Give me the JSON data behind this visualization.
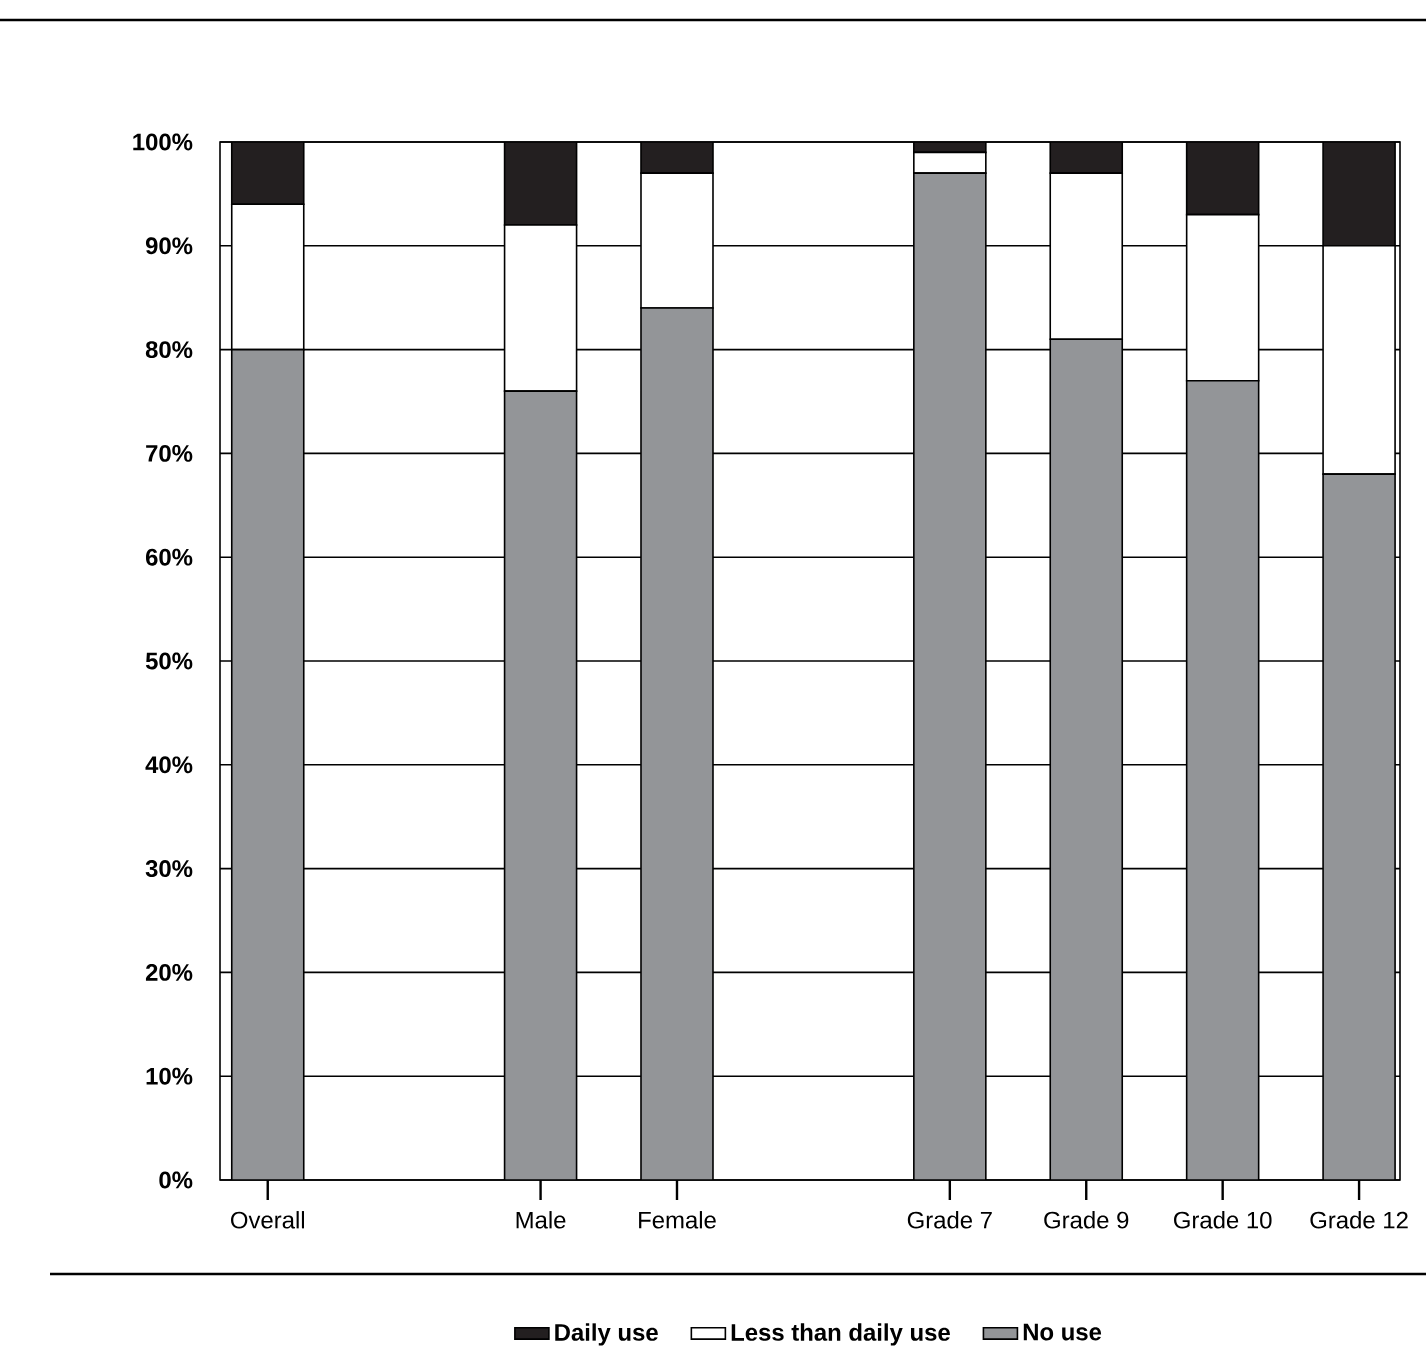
{
  "chart_data": {
    "type": "bar",
    "stacked": true,
    "categories": [
      "Overall",
      null,
      "Male",
      "Female",
      null,
      "Grade 7",
      "Grade 9",
      "Grade 10",
      "Grade 12"
    ],
    "series": [
      {
        "name": "No use",
        "color": "#939598",
        "values": [
          80,
          null,
          76,
          84,
          null,
          97,
          81,
          77,
          68
        ]
      },
      {
        "name": "Less than daily use",
        "color": "#ffffff",
        "values": [
          14,
          null,
          16,
          13,
          null,
          2,
          16,
          16,
          22
        ]
      },
      {
        "name": "Daily use",
        "color": "#231f20",
        "values": [
          6,
          null,
          8,
          3,
          null,
          1,
          3,
          7,
          10
        ]
      }
    ],
    "ylim": [
      0,
      100
    ],
    "yticks": [
      {
        "value": 0,
        "label": "0%"
      },
      {
        "value": 10,
        "label": "10%"
      },
      {
        "value": 20,
        "label": "20%"
      },
      {
        "value": 30,
        "label": "30%"
      },
      {
        "value": 40,
        "label": "40%"
      },
      {
        "value": 50,
        "label": "50%"
      },
      {
        "value": 60,
        "label": "60%"
      },
      {
        "value": 70,
        "label": "70%"
      },
      {
        "value": 80,
        "label": "80%"
      },
      {
        "value": 90,
        "label": "90%"
      },
      {
        "value": 100,
        "label": "100%"
      }
    ],
    "grid": "y",
    "legend": "bottom"
  }
}
